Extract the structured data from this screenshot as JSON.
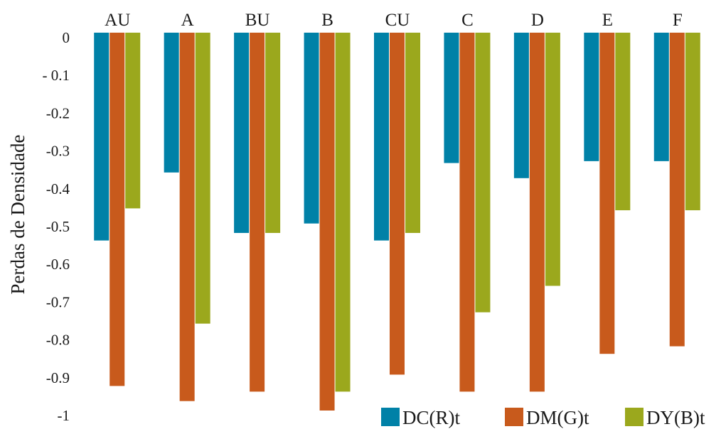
{
  "chart_data": {
    "type": "bar",
    "title": "",
    "xlabel": "",
    "ylabel": "Perdas de Densidade",
    "categories": [
      "AU",
      "A",
      "BU",
      "B",
      "CU",
      "C",
      "D",
      "E",
      "F"
    ],
    "series": [
      {
        "name": "DC(R)t",
        "color": "#0081A7",
        "values": [
          -0.55,
          -0.37,
          -0.53,
          -0.505,
          -0.55,
          -0.345,
          -0.385,
          -0.34,
          -0.34
        ]
      },
      {
        "name": "DM(G)t",
        "color": "#C85A1C",
        "values": [
          -0.935,
          -0.975,
          -0.95,
          -1.0,
          -0.905,
          -0.95,
          -0.95,
          -0.85,
          -0.83
        ]
      },
      {
        "name": "DY(B)t",
        "color": "#9BA81D",
        "values": [
          -0.465,
          -0.77,
          -0.53,
          -0.95,
          -0.53,
          -0.74,
          -0.67,
          -0.47,
          -0.47
        ]
      }
    ],
    "ylim": [
      -1.0,
      0
    ],
    "yticks": [
      0,
      -0.1,
      -0.2,
      -0.3,
      -0.4,
      -0.5,
      -0.6,
      -0.7,
      -0.8,
      -0.9,
      -1
    ],
    "ytick_labels": [
      "0",
      "- 0.1",
      "-0.2",
      "-0.3",
      "-0.4",
      "-0.5",
      "-0.6",
      "-0.7",
      "-0.8",
      "-0.9",
      "-1"
    ],
    "category_axis_position": "top",
    "legend_position": "bottom-right",
    "grid": false
  }
}
